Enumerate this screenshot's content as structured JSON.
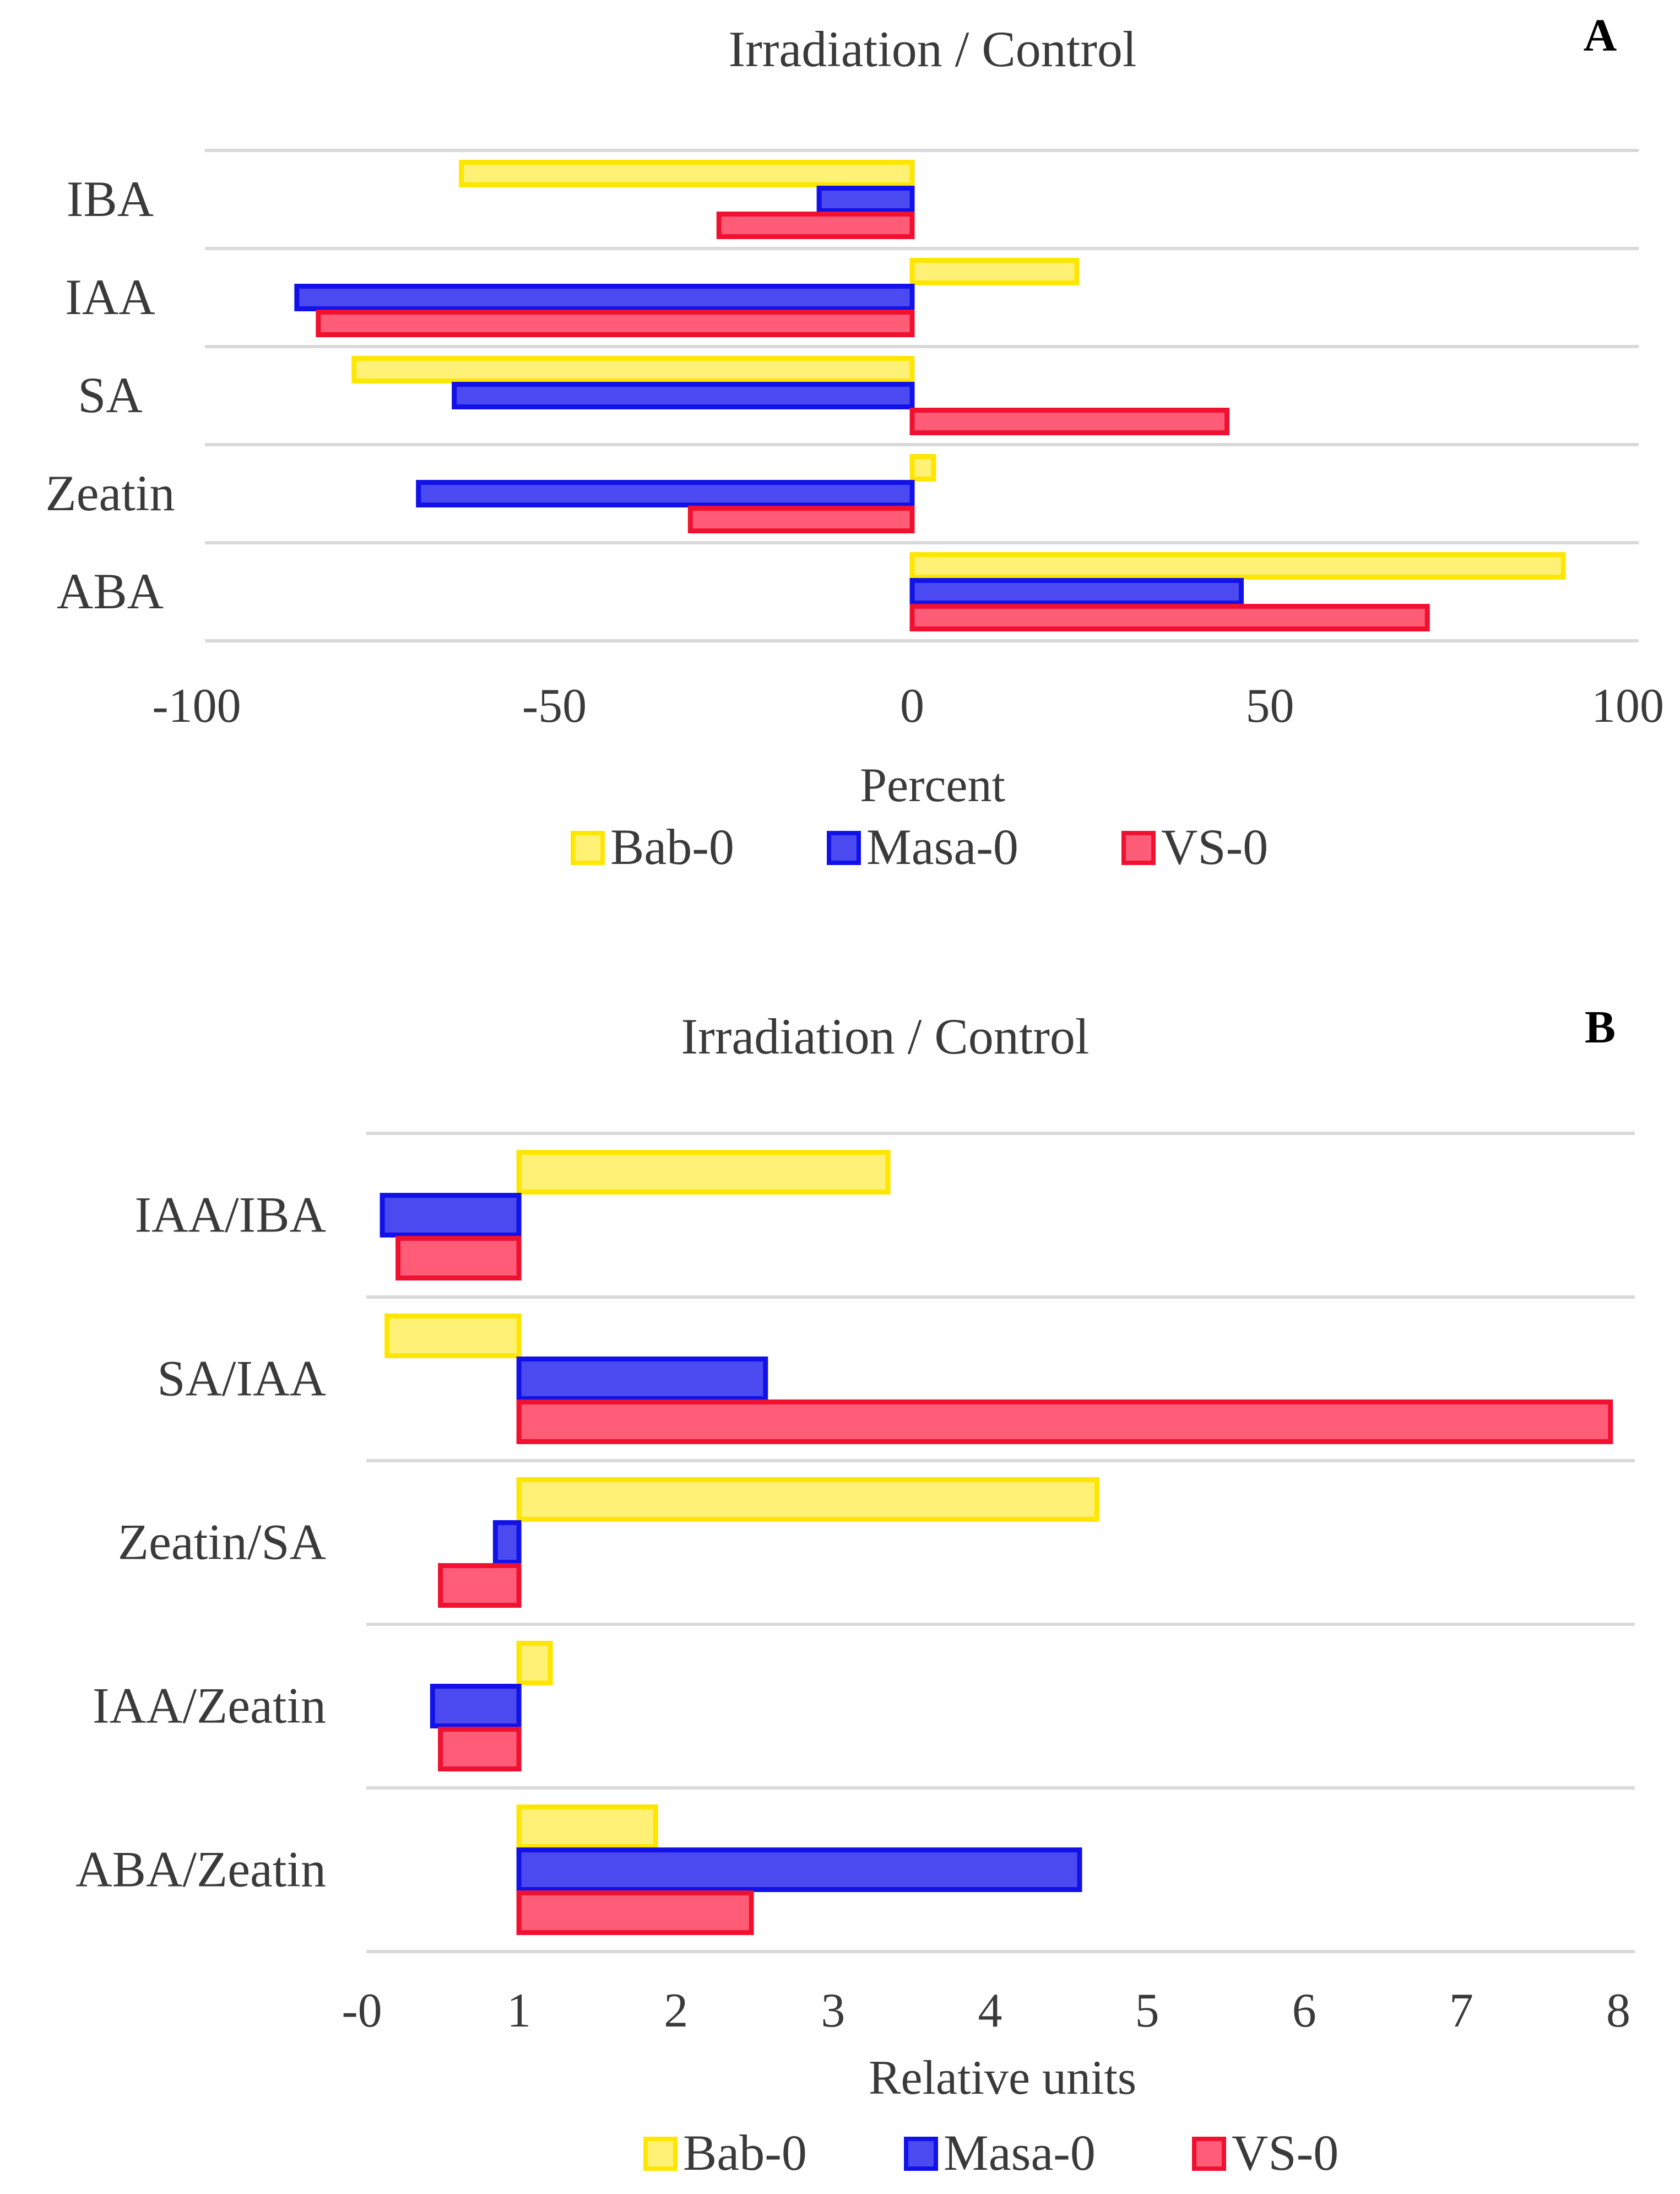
{
  "colors": {
    "Bab-0": {
      "fill": "#fff176",
      "stroke": "#ffe600"
    },
    "Masa-0": {
      "fill": "#4a4af0",
      "stroke": "#1212e8"
    },
    "VS-0": {
      "fill": "#ff5c77",
      "stroke": "#f01030"
    },
    "grid": "#d9d9d9"
  },
  "chart_data": [
    {
      "panel": "A",
      "type": "bar",
      "orientation": "horizontal",
      "title": "Irradiation / Control",
      "xlabel": "Percent",
      "ylabel": "",
      "xlim": [
        -100,
        100
      ],
      "xticks": [
        -100,
        -50,
        0,
        50,
        100
      ],
      "xtick_labels": [
        "-100",
        "-50",
        "0",
        "50",
        "100"
      ],
      "baseline": 0,
      "categories": [
        "IBA",
        "IAA",
        "SA",
        "Zeatin",
        "ABA"
      ],
      "series": [
        {
          "name": "Bab-0",
          "values": [
            -63,
            23,
            -78,
            3,
            91
          ]
        },
        {
          "name": "Masa-0",
          "values": [
            -13,
            -86,
            -64,
            -69,
            46
          ]
        },
        {
          "name": "VS-0",
          "values": [
            -27,
            -83,
            44,
            -31,
            72
          ]
        }
      ],
      "grid": true,
      "legend_position": "bottom"
    },
    {
      "panel": "B",
      "type": "bar",
      "orientation": "horizontal",
      "title": "Irradiation / Control",
      "xlabel": "Relative units",
      "ylabel": "",
      "xlim": [
        0,
        8
      ],
      "xticks": [
        0,
        1,
        2,
        3,
        4,
        5,
        6,
        7,
        8
      ],
      "xtick_labels": [
        "-0",
        "1",
        "2",
        "3",
        "4",
        "5",
        "6",
        "7",
        "8"
      ],
      "baseline": 1,
      "categories": [
        "IAA/IBA",
        "SA/IAA",
        "Zeatin/SA",
        "IAA/Zeatin",
        "ABA/Zeatin"
      ],
      "series": [
        {
          "name": "Bab-0",
          "values": [
            3.35,
            0.16,
            4.68,
            1.2,
            1.87
          ]
        },
        {
          "name": "Masa-0",
          "values": [
            0.13,
            2.57,
            0.85,
            0.45,
            4.57
          ]
        },
        {
          "name": "VS-0",
          "values": [
            0.23,
            7.95,
            0.5,
            0.5,
            2.48
          ]
        }
      ],
      "grid": true,
      "legend_position": "bottom"
    }
  ]
}
